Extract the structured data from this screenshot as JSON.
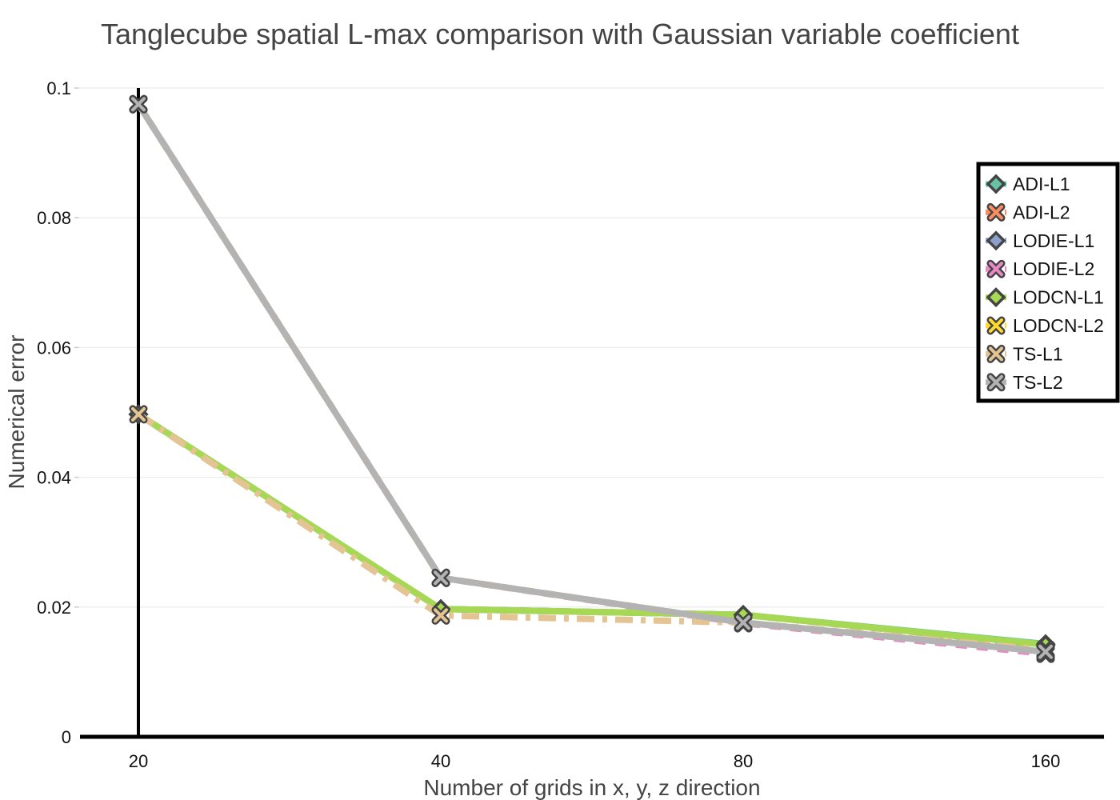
{
  "chart_data": {
    "type": "line",
    "title": "Tanglecube spatial L-max comparison with Gaussian variable coefficient",
    "xlabel": "Number of grids in x, y, z direction",
    "ylabel": "Numerical error",
    "x": [
      20,
      40,
      80,
      160
    ],
    "x_tick_labels": [
      "20",
      "40",
      "80",
      "160"
    ],
    "y_ticks": [
      0,
      0.02,
      0.04,
      0.06,
      0.08,
      0.1
    ],
    "y_tick_labels": [
      "0",
      "0.02",
      "0.04",
      "0.06",
      "0.08",
      "0.1"
    ],
    "ylim": [
      0,
      0.1
    ],
    "grid": true,
    "legend_position": "right",
    "series": [
      {
        "name": "ADI-L1",
        "values": [
          0.0497,
          0.0197,
          0.0188,
          0.0143
        ],
        "color": "#66c2a5",
        "dash": "solid",
        "marker": "diamond"
      },
      {
        "name": "ADI-L2",
        "values": [
          0.0975,
          0.0245,
          0.0176,
          0.0131
        ],
        "color": "#fc8d62",
        "dash": "dash",
        "marker": "x"
      },
      {
        "name": "LODIE-L1",
        "values": [
          0.0497,
          0.0197,
          0.0188,
          0.0141
        ],
        "color": "#8da0cb",
        "dash": "dash",
        "marker": "diamond"
      },
      {
        "name": "LODIE-L2",
        "values": [
          0.0975,
          0.0245,
          0.0175,
          0.0128
        ],
        "color": "#e78ac3",
        "dash": "dash",
        "marker": "x"
      },
      {
        "name": "LODCN-L1",
        "values": [
          0.0497,
          0.0197,
          0.0188,
          0.0142
        ],
        "color": "#a6d854",
        "dash": "solid",
        "marker": "diamond"
      },
      {
        "name": "LODCN-L2",
        "values": [
          0.0975,
          0.0245,
          0.0176,
          0.0132
        ],
        "color": "#ffd92f",
        "dash": "dash",
        "marker": "x"
      },
      {
        "name": "TS-L1",
        "values": [
          0.0497,
          0.0187,
          0.0176,
          0.0134
        ],
        "color": "#e5c494",
        "dash": "dashdot",
        "marker": "x"
      },
      {
        "name": "TS-L2",
        "values": [
          0.0975,
          0.0245,
          0.0176,
          0.0131
        ],
        "color": "#b3b3b3",
        "dash": "solid",
        "marker": "x"
      }
    ]
  }
}
